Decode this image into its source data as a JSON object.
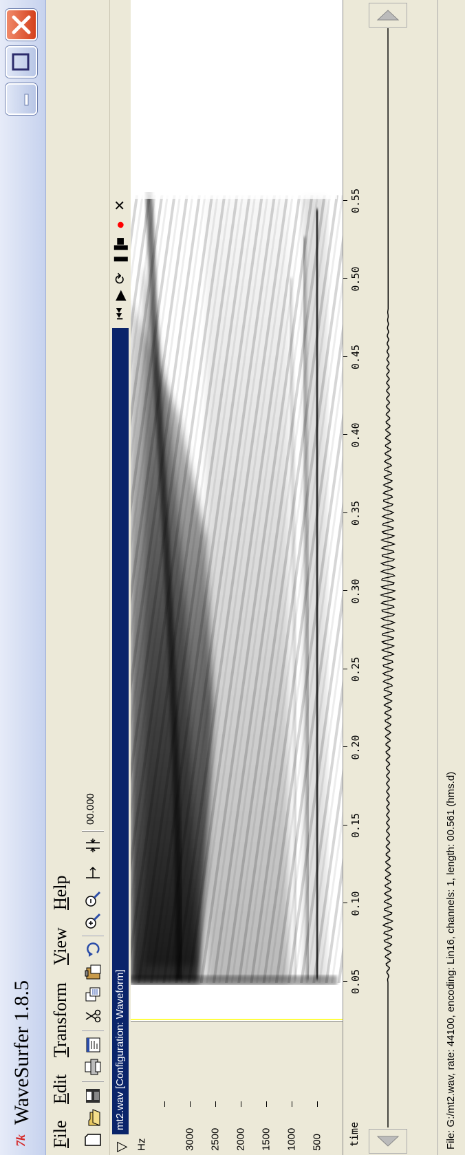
{
  "window": {
    "title": "WaveSurfer 1.8.5",
    "icon": "wavesurfer-logo-icon"
  },
  "menu": [
    {
      "first": "F",
      "rest": "ile"
    },
    {
      "first": "E",
      "rest": "dit"
    },
    {
      "first": "T",
      "rest": "ransform"
    },
    {
      "first": "V",
      "rest": "iew"
    },
    {
      "first": "H",
      "rest": "elp"
    }
  ],
  "toolbar": {
    "icons": [
      "new-file-icon",
      "open-file-icon",
      "save-icon",
      "print-icon",
      "properties-icon",
      "cut-icon",
      "copy-icon",
      "paste-icon",
      "undo-icon",
      "zoom-in-icon",
      "zoom-out-icon",
      "zoom-to-selection-icon",
      "zoom-full-icon"
    ],
    "time": "00.000"
  },
  "pane": {
    "title": "mt2.wav  [Configuration: Waveform]",
    "controls": [
      "rewind-icon",
      "play-icon",
      "play-loop-icon",
      "pause-icon",
      "stop-icon",
      "record-icon",
      "close-icon"
    ]
  },
  "spectrogram": {
    "unit": "Hz",
    "freq_ticks": [
      "3000",
      "2500",
      "2000",
      "1500",
      "1000",
      "500"
    ],
    "time_label": "time",
    "time_ticks": [
      "0.05",
      "0.10",
      "0.15",
      "0.20",
      "0.25",
      "0.30",
      "0.35",
      "0.40",
      "0.45",
      "0.50",
      "0.55"
    ],
    "cursor_color": "#ffff00"
  },
  "status": {
    "text": "File: G:/mt2.wav, rate: 44100, encoding: Lin16, channels: 1, length: 00.561 (hms.d)"
  },
  "colors": {
    "title_bar": "#c6d2ee",
    "close_button": "#d4401c",
    "pane_title_bar": "#0a246a",
    "record_red": "#ff0000"
  }
}
